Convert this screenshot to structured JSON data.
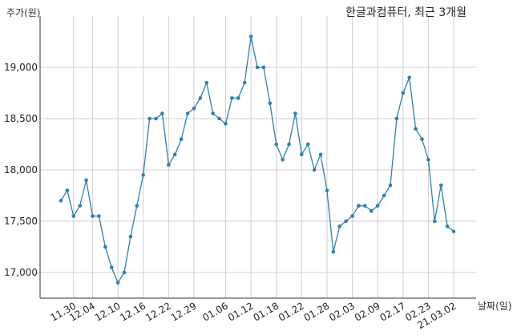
{
  "chart_data": {
    "type": "line",
    "title": "한글과컴퓨터, 최근 3개월",
    "ylabel": "주가(원)",
    "xlabel": "날짜(일)",
    "ylim": [
      16750,
      19500
    ],
    "yticks": [
      17000,
      17500,
      18000,
      18500,
      19000
    ],
    "ytick_labels": [
      "17,000",
      "17,500",
      "18,000",
      "18,500",
      "19,000"
    ],
    "xtick_labels": [
      "11.30",
      "12.04",
      "12.10",
      "12.16",
      "12.22",
      "12.29",
      "01.06",
      "01.12",
      "01.18",
      "01.22",
      "01.28",
      "02.03",
      "02.09",
      "02.17",
      "02.23",
      "21.03.02"
    ],
    "xtick_indices": [
      2,
      5,
      9,
      13,
      17,
      21,
      26,
      30,
      34,
      38,
      42,
      46,
      50,
      54,
      58,
      62
    ],
    "grid": true,
    "color": "#2e7fb0",
    "series": [
      {
        "values": [
          17700,
          17800,
          17550,
          17650,
          17900,
          17550,
          17550,
          17250,
          17050,
          16900,
          17000,
          17350,
          17650,
          17950,
          18500,
          18500,
          18550,
          18050,
          18150,
          18300,
          18550,
          18600,
          18700,
          18850,
          18550,
          18500,
          18450,
          18700,
          18700,
          18850,
          19300,
          19000,
          19000,
          18650,
          18250,
          18100,
          18250,
          18550,
          18150,
          18250,
          18000,
          18150,
          17800,
          17200,
          17450,
          17500,
          17550,
          17650,
          17650,
          17600,
          17650,
          17750,
          17850,
          18500,
          18750,
          18900,
          18400,
          18300,
          18100,
          17500,
          17850,
          17450,
          17400
        ]
      }
    ]
  }
}
